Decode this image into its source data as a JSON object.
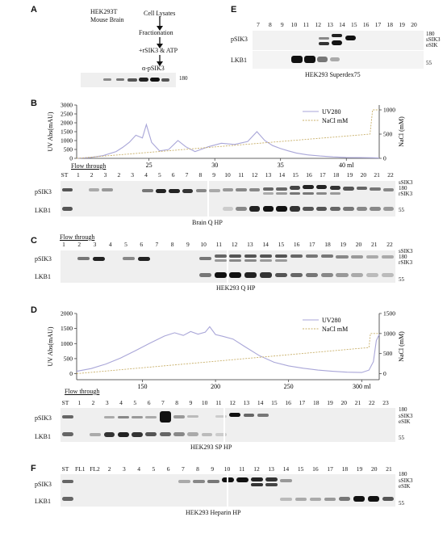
{
  "panels": {
    "A": {
      "letter": "A",
      "samples": [
        "HEK293T",
        "Mouse Brain"
      ],
      "flow": [
        "Cell Lysates",
        "Fractionation",
        "+rSIK3 & ATP",
        "α-pSIK3"
      ],
      "marker": "180"
    },
    "B": {
      "letter": "B",
      "chart_data": {
        "type": "line",
        "ylabel": "UV Abs(mAU)",
        "y2label": "NaCl  (mM)",
        "xlabel_unit": "ml",
        "x_ticks": [
          "25",
          "30",
          "35",
          "40 ml"
        ],
        "y_ticks": [
          "0",
          "500",
          "1000",
          "1500",
          "2000",
          "2500",
          "3000"
        ],
        "y2_ticks": [
          "0",
          "500",
          "1000"
        ],
        "ylim": [
          0,
          3000
        ],
        "y2lim": [
          0,
          1100
        ],
        "xlim": [
          19.5,
          42.5
        ],
        "legend": [
          "UV280",
          "NaCl mM"
        ],
        "series": [
          {
            "name": "UV280",
            "color": "#a9a6d8",
            "x": [
              19.5,
              20.5,
              21.5,
              22.5,
              23.0,
              23.5,
              24.0,
              24.5,
              24.8,
              25.2,
              25.8,
              26.5,
              27.2,
              27.8,
              28.5,
              29.5,
              30.5,
              31.5,
              32.5,
              33.2,
              33.8,
              34.4,
              35.0,
              35.6,
              36.2,
              37.0,
              38.0,
              39.0,
              40.0,
              41.0,
              42.0,
              42.5
            ],
            "y": [
              0,
              40,
              150,
              380,
              620,
              900,
              1300,
              1150,
              1900,
              900,
              420,
              500,
              1000,
              650,
              380,
              650,
              850,
              780,
              950,
              1500,
              1000,
              720,
              550,
              420,
              300,
              200,
              130,
              80,
              50,
              40,
              30,
              20
            ]
          },
          {
            "name": "NaCl mM",
            "color": "#c9b06a",
            "x": [
              19.5,
              41.8,
              42.0,
              42.5
            ],
            "y": [
              0,
              500,
              1000,
              1000
            ]
          }
        ]
      },
      "lanes_top": [
        "ST",
        "1",
        "2",
        "3",
        "2",
        "3",
        "4",
        "5",
        "6",
        "7",
        "8",
        "9",
        "10",
        "11",
        "12",
        "13",
        "14",
        "15",
        "16",
        "17",
        "18",
        "19",
        "20",
        "21",
        "22"
      ],
      "flow_label": "Flow through",
      "caption": "Brain  Q HP",
      "right_labels": [
        "sSIK3",
        "180",
        "rSIK3"
      ],
      "marker55": "55"
    },
    "C": {
      "letter": "C",
      "flow_label": "Flow through",
      "lanes": [
        "1",
        "2",
        "3",
        "4",
        "5",
        "6",
        "7",
        "8",
        "9",
        "10",
        "11",
        "12",
        "13",
        "14",
        "15",
        "16",
        "17",
        "18",
        "19",
        "20",
        "21",
        "22"
      ],
      "caption": "HEK293 Q HP",
      "right_labels": [
        "sSIK3",
        "180",
        "rSIK3"
      ],
      "marker55": "55"
    },
    "D": {
      "letter": "D",
      "chart_data": {
        "type": "line",
        "ylabel": "UV Abs(mAU)",
        "y2label": "NaCl  (mM)",
        "x_ticks": [
          "150",
          "200",
          "250",
          "300 ml"
        ],
        "y_ticks": [
          "0",
          "500",
          "1000",
          "1500",
          "2000"
        ],
        "y2_ticks": [
          "0",
          "500",
          "1000",
          "1500"
        ],
        "ylim": [
          -200,
          2000
        ],
        "y2lim": [
          -150,
          1500
        ],
        "xlim": [
          105,
          312
        ],
        "legend": [
          "UV280",
          "NaCl mM"
        ],
        "series": [
          {
            "name": "UV280",
            "color": "#a9a6d8",
            "x": [
              105,
              115,
              125,
              135,
              145,
              155,
              165,
              172,
              178,
              183,
              188,
              193,
              196,
              200,
              205,
              212,
              220,
              230,
              240,
              250,
              260,
              270,
              280,
              290,
              300,
              305,
              308,
              310,
              312
            ],
            "y": [
              80,
              170,
              320,
              520,
              760,
              1010,
              1250,
              1360,
              1270,
              1400,
              1310,
              1380,
              1560,
              1300,
              1240,
              1150,
              900,
              600,
              380,
              260,
              180,
              120,
              80,
              50,
              40,
              120,
              400,
              1100,
              1300
            ]
          },
          {
            "name": "NaCl mM",
            "color": "#c9b06a",
            "x": [
              105,
              305,
              306,
              312
            ],
            "y": [
              0,
              650,
              1000,
              1000
            ]
          }
        ]
      },
      "flow_label": "Flow through",
      "lanes": [
        "ST",
        "1",
        "2",
        "3",
        "4",
        "5",
        "6",
        "7",
        "8",
        "9",
        "10",
        "11",
        "12",
        "13",
        "14",
        "15",
        "16",
        "17",
        "18",
        "19",
        "20",
        "21",
        "22",
        "23"
      ],
      "caption": "HEK293 SP HP",
      "right_labels": [
        "180",
        "sSIK3",
        "eSIK"
      ],
      "marker55": "55"
    },
    "E": {
      "letter": "E",
      "lanes": [
        "7",
        "8",
        "9",
        "10",
        "11",
        "12",
        "13",
        "14",
        "15",
        "16",
        "17",
        "18",
        "19",
        "20"
      ],
      "caption": "HEK293 Superdex75",
      "right_labels": [
        "180",
        "sSIK3",
        "eSIK"
      ],
      "marker55": "55"
    },
    "F": {
      "letter": "F",
      "lanes": [
        "ST",
        "FL1",
        "FL2",
        "2",
        "3",
        "4",
        "5",
        "6",
        "7",
        "8",
        "9",
        "10",
        "11",
        "12",
        "13",
        "14",
        "15",
        "16",
        "17",
        "18",
        "19",
        "20",
        "21"
      ],
      "caption": "HEK293 Heparin  HP",
      "right_labels": [
        "180",
        "sSIK3",
        "eSIK"
      ],
      "marker55": "55"
    }
  },
  "row_labels": {
    "psik3": "pSIK3",
    "lkb1": "LKB1"
  }
}
